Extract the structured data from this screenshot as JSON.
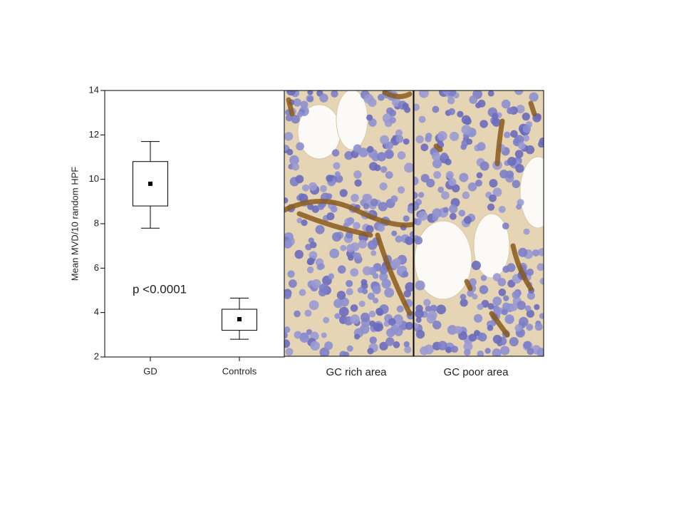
{
  "chart_data": {
    "type": "box",
    "y_label": "Mean MVD/10 random HPF",
    "categories": [
      "GD",
      "Controls"
    ],
    "stats": {
      "min": [
        7.8,
        2.8
      ],
      "q1": [
        8.8,
        3.2
      ],
      "mean": [
        9.8,
        3.7
      ],
      "q3": [
        10.8,
        4.15
      ],
      "max": [
        11.7,
        4.65
      ]
    },
    "ylim": [
      2,
      14
    ],
    "yticks": [
      2,
      4,
      6,
      8,
      10,
      12,
      14
    ],
    "annotation": "p <0.0001",
    "color": "#000000"
  },
  "panels": [
    {
      "caption": "GC rich area"
    },
    {
      "caption": "GC poor area"
    }
  ]
}
